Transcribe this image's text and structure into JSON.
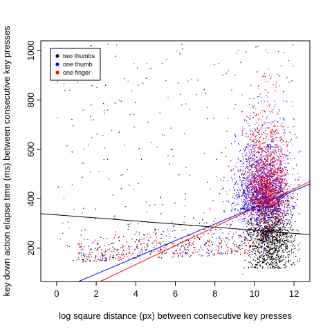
{
  "chart_data": {
    "type": "scatter",
    "title": "",
    "xlabel": "log sqaure distance (px) between consecutive key presses",
    "ylabel": "key down action elapse time (ms) between consecutive key presses",
    "xlim": [
      -0.8,
      12.8
    ],
    "ylim": [
      65,
      1040
    ],
    "x_ticks": [
      0,
      2,
      4,
      6,
      8,
      10,
      12
    ],
    "y_ticks": [
      200,
      400,
      600,
      800,
      1000
    ],
    "grid": false,
    "legend_position": "top-left",
    "series": [
      {
        "name": "two thumbs",
        "color": "#000000",
        "cluster": {
          "x_center": 10.8,
          "x_spread": 1.0,
          "y_center": 230,
          "y_spread": 110
        },
        "fit_line": {
          "x": [
            -0.8,
            12.8
          ],
          "y": [
            340,
            255
          ]
        }
      },
      {
        "name": "one thumb",
        "color": "#0000ff",
        "cluster": {
          "x_center": 10.4,
          "x_spread": 1.1,
          "y_center": 350,
          "y_spread": 180
        },
        "fit_line": {
          "x": [
            1.1,
            12.8
          ],
          "y": [
            65,
            460
          ]
        }
      },
      {
        "name": "one finger",
        "color": "#ff0000",
        "cluster": {
          "x_center": 10.6,
          "x_spread": 0.9,
          "y_center": 380,
          "y_spread": 200
        },
        "fit_line": {
          "x": [
            2.2,
            12.8
          ],
          "y": [
            65,
            470
          ]
        }
      }
    ]
  }
}
